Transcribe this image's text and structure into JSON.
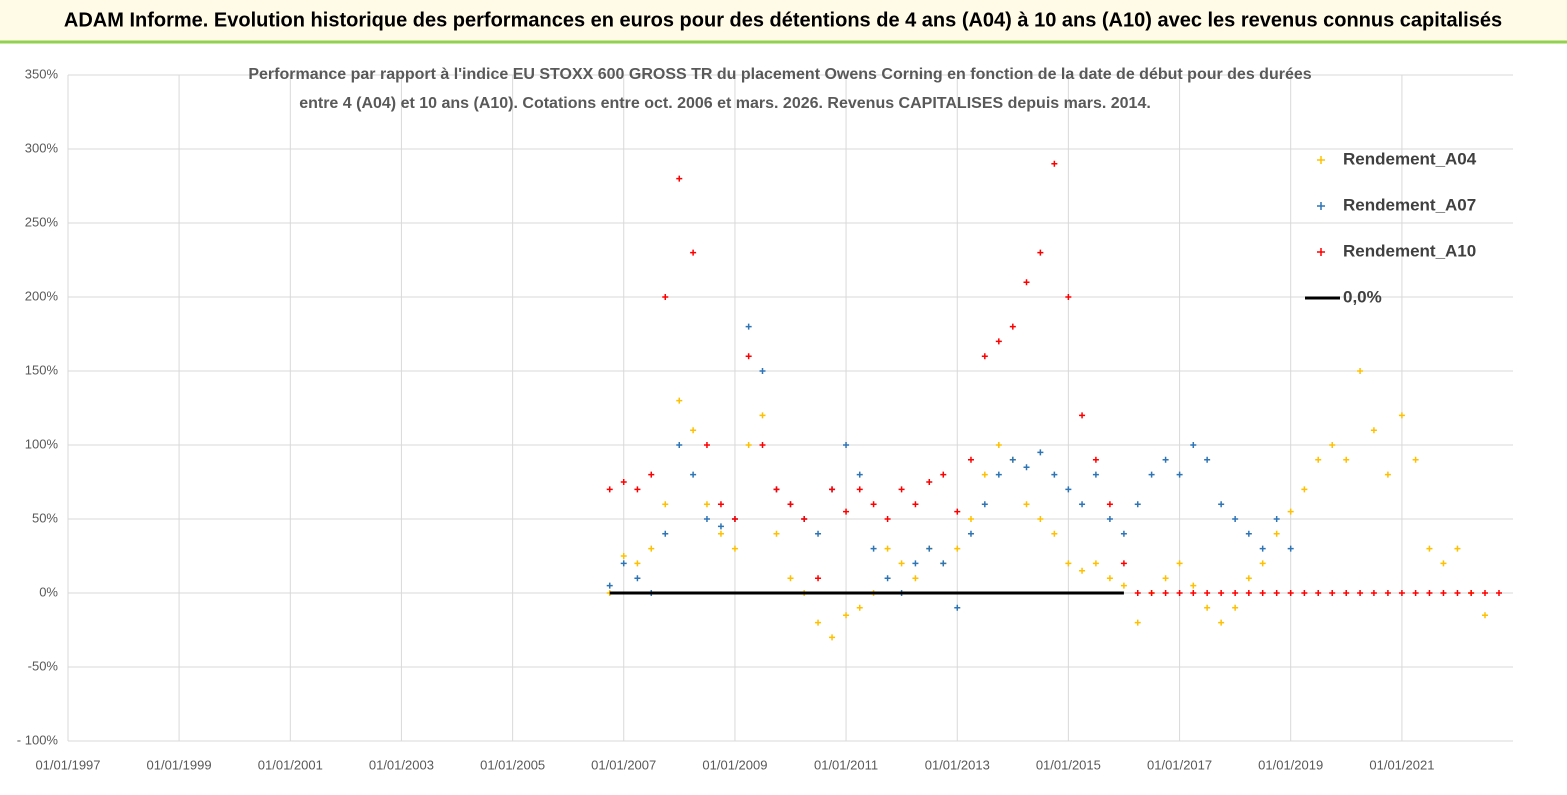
{
  "header": {
    "title": "ADAM Informe. Evolution historique des performances en euros pour des détentions de 4 ans (A04) à 10 ans (A10) avec les revenus connus capitalisés"
  },
  "chart_data": {
    "type": "scatter",
    "title": [
      "Performance par rapport à l'indice EU STOXX 600 GROSS TR  du placement Owens Corning en fonction de la date de début pour des durées",
      "entre 4 (A04) et 10 ans (A10). Cotations entre oct. 2006 et mars. 2026. Revenus CAPITALISES depuis mars. 2014."
    ],
    "xlim": [
      "1997-01-01",
      "2023-01-01"
    ],
    "xticks": [
      {
        "value": "1997-01-01",
        "label": "01/01/1997"
      },
      {
        "value": "1999-01-01",
        "label": "01/01/1999"
      },
      {
        "value": "2001-01-01",
        "label": "01/01/2001"
      },
      {
        "value": "2003-01-01",
        "label": "01/01/2003"
      },
      {
        "value": "2005-01-01",
        "label": "01/01/2005"
      },
      {
        "value": "2007-01-01",
        "label": "01/01/2007"
      },
      {
        "value": "2009-01-01",
        "label": "01/01/2009"
      },
      {
        "value": "2011-01-01",
        "label": "01/01/2011"
      },
      {
        "value": "2013-01-01",
        "label": "01/01/2013"
      },
      {
        "value": "2015-01-01",
        "label": "01/01/2015"
      },
      {
        "value": "2017-01-01",
        "label": "01/01/2017"
      },
      {
        "value": "2019-01-01",
        "label": "01/01/2019"
      },
      {
        "value": "2021-01-01",
        "label": "01/01/2021"
      }
    ],
    "ylim": [
      -100,
      350
    ],
    "yticks": [
      {
        "value": -100,
        "label": "- 100%"
      },
      {
        "value": -50,
        "label": "-50%"
      },
      {
        "value": 0,
        "label": "0%"
      },
      {
        "value": 50,
        "label": "50%"
      },
      {
        "value": 100,
        "label": "100%"
      },
      {
        "value": 150,
        "label": "150%"
      },
      {
        "value": 200,
        "label": "200%"
      },
      {
        "value": 250,
        "label": "250%"
      },
      {
        "value": 300,
        "label": "300%"
      },
      {
        "value": 350,
        "label": "350%"
      }
    ],
    "grid": true,
    "legend": "right",
    "series": [
      {
        "name": "Rendement_A04",
        "color": "#ffc000",
        "x": [
          "2006-10-01",
          "2007-01-01",
          "2007-04-01",
          "2007-07-01",
          "2007-10-01",
          "2008-01-01",
          "2008-04-01",
          "2008-07-01",
          "2008-10-01",
          "2009-01-01",
          "2009-04-01",
          "2009-07-01",
          "2009-10-01",
          "2010-01-01",
          "2010-04-01",
          "2010-07-01",
          "2010-10-01",
          "2011-01-01",
          "2011-04-01",
          "2011-07-01",
          "2011-10-01",
          "2012-01-01",
          "2012-04-01",
          "2012-07-01",
          "2012-10-01",
          "2013-01-01",
          "2013-04-01",
          "2013-07-01",
          "2013-10-01",
          "2014-01-01",
          "2014-04-01",
          "2014-07-01",
          "2014-10-01",
          "2015-01-01",
          "2015-04-01",
          "2015-07-01",
          "2015-10-01",
          "2016-01-01",
          "2016-04-01",
          "2016-07-01",
          "2016-10-01",
          "2017-01-01",
          "2017-04-01",
          "2017-07-01",
          "2017-10-01",
          "2018-01-01",
          "2018-04-01",
          "2018-07-01",
          "2018-10-01",
          "2019-01-01",
          "2019-04-01",
          "2019-07-01",
          "2019-10-01",
          "2020-01-01",
          "2020-04-01",
          "2020-07-01",
          "2020-10-01",
          "2021-01-01",
          "2021-04-01",
          "2021-07-01",
          "2021-10-01",
          "2022-01-01",
          "2022-04-01",
          "2022-07-01"
        ],
        "values": [
          0,
          25,
          20,
          30,
          60,
          130,
          110,
          60,
          40,
          30,
          100,
          120,
          40,
          10,
          0,
          -20,
          -30,
          -15,
          -10,
          0,
          30,
          20,
          10,
          30,
          20,
          30,
          50,
          80,
          100,
          90,
          60,
          50,
          40,
          20,
          15,
          20,
          10,
          5,
          -20,
          0,
          10,
          20,
          5,
          -10,
          -20,
          -10,
          10,
          20,
          40,
          55,
          70,
          90,
          100,
          90,
          150,
          110,
          80,
          120,
          90,
          30,
          20,
          30,
          0,
          -15
        ]
      },
      {
        "name": "Rendement_A07",
        "color": "#2e75b6",
        "x": [
          "2006-10-01",
          "2007-01-01",
          "2007-04-01",
          "2007-07-01",
          "2007-10-01",
          "2008-01-01",
          "2008-04-01",
          "2008-07-01",
          "2008-10-01",
          "2009-01-01",
          "2009-04-01",
          "2009-07-01",
          "2009-10-01",
          "2010-01-01",
          "2010-04-01",
          "2010-07-01",
          "2010-10-01",
          "2011-01-01",
          "2011-04-01",
          "2011-07-01",
          "2011-10-01",
          "2012-01-01",
          "2012-04-01",
          "2012-07-01",
          "2012-10-01",
          "2013-01-01",
          "2013-04-01",
          "2013-07-01",
          "2013-10-01",
          "2014-01-01",
          "2014-04-01",
          "2014-07-01",
          "2014-10-01",
          "2015-01-01",
          "2015-04-01",
          "2015-07-01",
          "2015-10-01",
          "2016-01-01",
          "2016-04-01",
          "2016-07-01",
          "2016-10-01",
          "2017-01-01",
          "2017-04-01",
          "2017-07-01",
          "2017-10-01",
          "2018-01-01",
          "2018-04-01",
          "2018-07-01",
          "2018-10-01",
          "2019-01-01"
        ],
        "values": [
          5,
          20,
          10,
          0,
          40,
          100,
          80,
          50,
          45,
          50,
          180,
          150,
          70,
          60,
          50,
          40,
          70,
          100,
          80,
          30,
          10,
          0,
          20,
          30,
          20,
          -10,
          40,
          60,
          80,
          90,
          85,
          95,
          80,
          70,
          60,
          80,
          50,
          40,
          60,
          80,
          90,
          80,
          100,
          90,
          60,
          50,
          40,
          30,
          50,
          30
        ]
      },
      {
        "name": "Rendement_A10",
        "color": "#ff0000",
        "x": [
          "2006-10-01",
          "2007-01-01",
          "2007-04-01",
          "2007-07-01",
          "2007-10-01",
          "2008-01-01",
          "2008-04-01",
          "2008-07-01",
          "2008-10-01",
          "2009-01-01",
          "2009-04-01",
          "2009-07-01",
          "2009-10-01",
          "2010-01-01",
          "2010-04-01",
          "2010-07-01",
          "2010-10-01",
          "2011-01-01",
          "2011-04-01",
          "2011-07-01",
          "2011-10-01",
          "2012-01-01",
          "2012-04-01",
          "2012-07-01",
          "2012-10-01",
          "2013-01-01",
          "2013-04-01",
          "2013-07-01",
          "2013-10-01",
          "2014-01-01",
          "2014-04-01",
          "2014-07-01",
          "2014-10-01",
          "2015-01-01",
          "2015-04-01",
          "2015-07-01",
          "2015-10-01",
          "2016-01-01",
          "2016-04-01",
          "2016-07-01",
          "2016-10-01",
          "2017-01-01",
          "2017-04-01",
          "2017-07-01",
          "2017-10-01",
          "2018-01-01",
          "2018-04-01",
          "2018-07-01",
          "2018-10-01",
          "2019-01-01",
          "2019-04-01",
          "2019-07-01",
          "2019-10-01",
          "2020-01-01",
          "2020-04-01",
          "2020-07-01",
          "2020-10-01",
          "2021-01-01",
          "2021-04-01",
          "2021-07-01",
          "2021-10-01",
          "2022-01-01",
          "2022-04-01",
          "2022-07-01",
          "2022-10-01"
        ],
        "values": [
          70,
          75,
          70,
          80,
          200,
          280,
          230,
          100,
          60,
          50,
          160,
          100,
          70,
          60,
          50,
          10,
          70,
          55,
          70,
          60,
          50,
          70,
          60,
          75,
          80,
          55,
          90,
          160,
          170,
          180,
          210,
          230,
          290,
          200,
          120,
          90,
          60,
          20,
          0,
          0,
          0,
          0,
          0,
          0,
          0,
          0,
          0,
          0,
          0,
          0,
          0,
          0,
          0,
          0,
          0,
          0,
          0,
          0,
          0,
          0,
          0,
          0,
          0,
          0,
          0
        ]
      },
      {
        "name": "0,0%",
        "color": "#000000",
        "line": true,
        "x": [
          "2006-10-01",
          "2016-01-01"
        ],
        "values": [
          0,
          0
        ]
      }
    ]
  }
}
